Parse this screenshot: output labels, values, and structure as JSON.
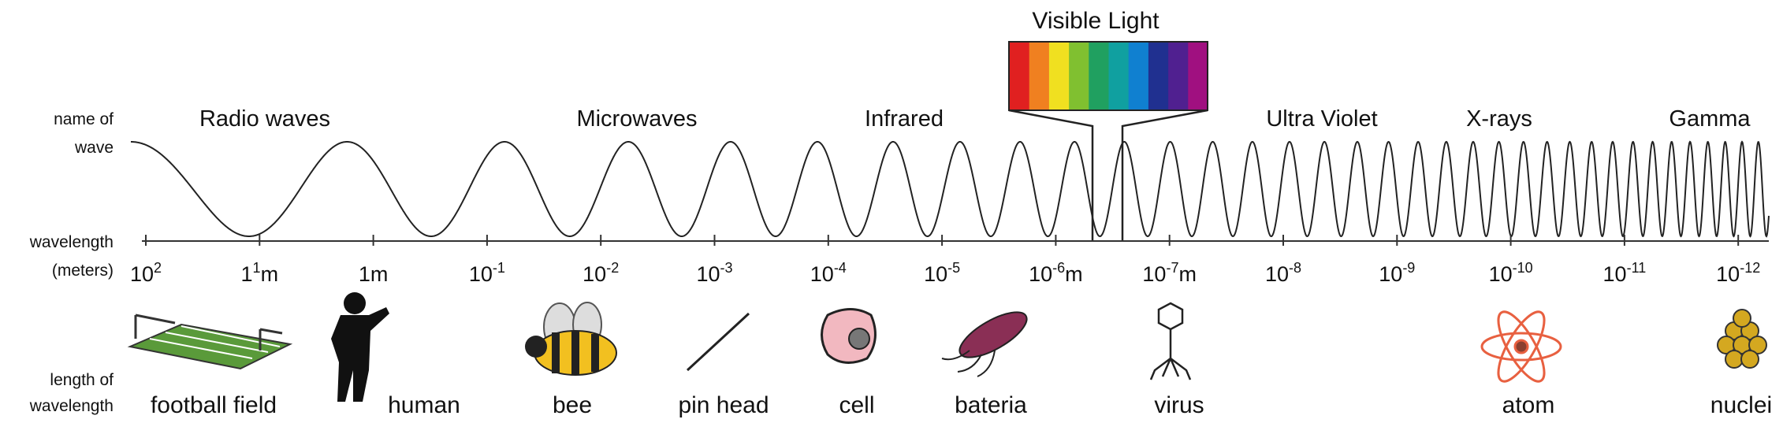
{
  "side_labels": {
    "name_of_wave": [
      "name of",
      "wave"
    ],
    "wavelength": [
      "wavelength",
      "(meters)"
    ],
    "length_of_wavelength": [
      "length of",
      "wavelength"
    ]
  },
  "visible_light": "Visible Light",
  "wave_names": [
    "Radio waves",
    "Microwaves",
    "Infrared",
    "Ultra Violet",
    "X-rays",
    "Gamma"
  ],
  "scale_labels": [
    {
      "text": "10",
      "sup": "2"
    },
    {
      "text": "1",
      "sup": "1",
      "unit": "m"
    },
    {
      "text": "1m"
    },
    {
      "text": "10",
      "sup": "-1"
    },
    {
      "text": "10",
      "sup": "-2"
    },
    {
      "text": "10",
      "sup": "-3"
    },
    {
      "text": "10",
      "sup": "-4"
    },
    {
      "text": "10",
      "sup": "-5"
    },
    {
      "text": "10",
      "sup": "-6",
      "unit": "m"
    },
    {
      "text": "10",
      "sup": "-7",
      "unit": "m"
    },
    {
      "text": "10",
      "sup": "-8"
    },
    {
      "text": "10",
      "sup": "-9"
    },
    {
      "text": "10",
      "sup": "-10"
    },
    {
      "text": "10",
      "sup": "-11"
    },
    {
      "text": "10",
      "sup": "-12"
    }
  ],
  "objects": [
    "football field",
    "human",
    "bee",
    "pin head",
    "cell",
    "bateria",
    "virus",
    "atom",
    "nuclei"
  ]
}
